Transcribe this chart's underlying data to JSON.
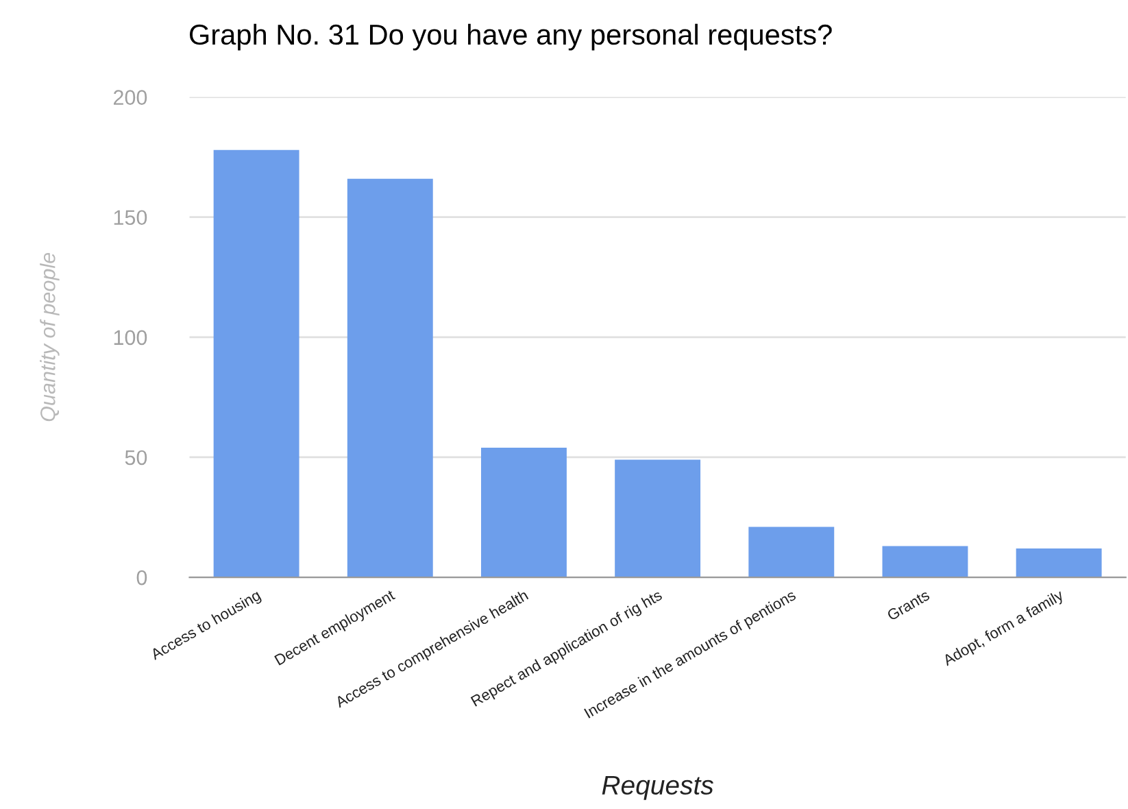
{
  "chart_data": {
    "type": "bar",
    "title": "Graph No. 31 Do you have any personal requests?",
    "xlabel": "Requests",
    "ylabel": "Quantity of people",
    "categories": [
      "Access to housing",
      "Decent employment",
      "Access to comprehensive health",
      "Repect and application of rig hts",
      "Increase in the amounts of pentions",
      "Grants",
      "Adopt, form a family"
    ],
    "values": [
      178,
      166,
      54,
      49,
      21,
      13,
      12
    ],
    "color": "#6d9eeb",
    "ylim": [
      0,
      200
    ],
    "yticks": [
      0,
      50,
      100,
      150,
      200
    ],
    "grid": "y",
    "legend": false
  }
}
